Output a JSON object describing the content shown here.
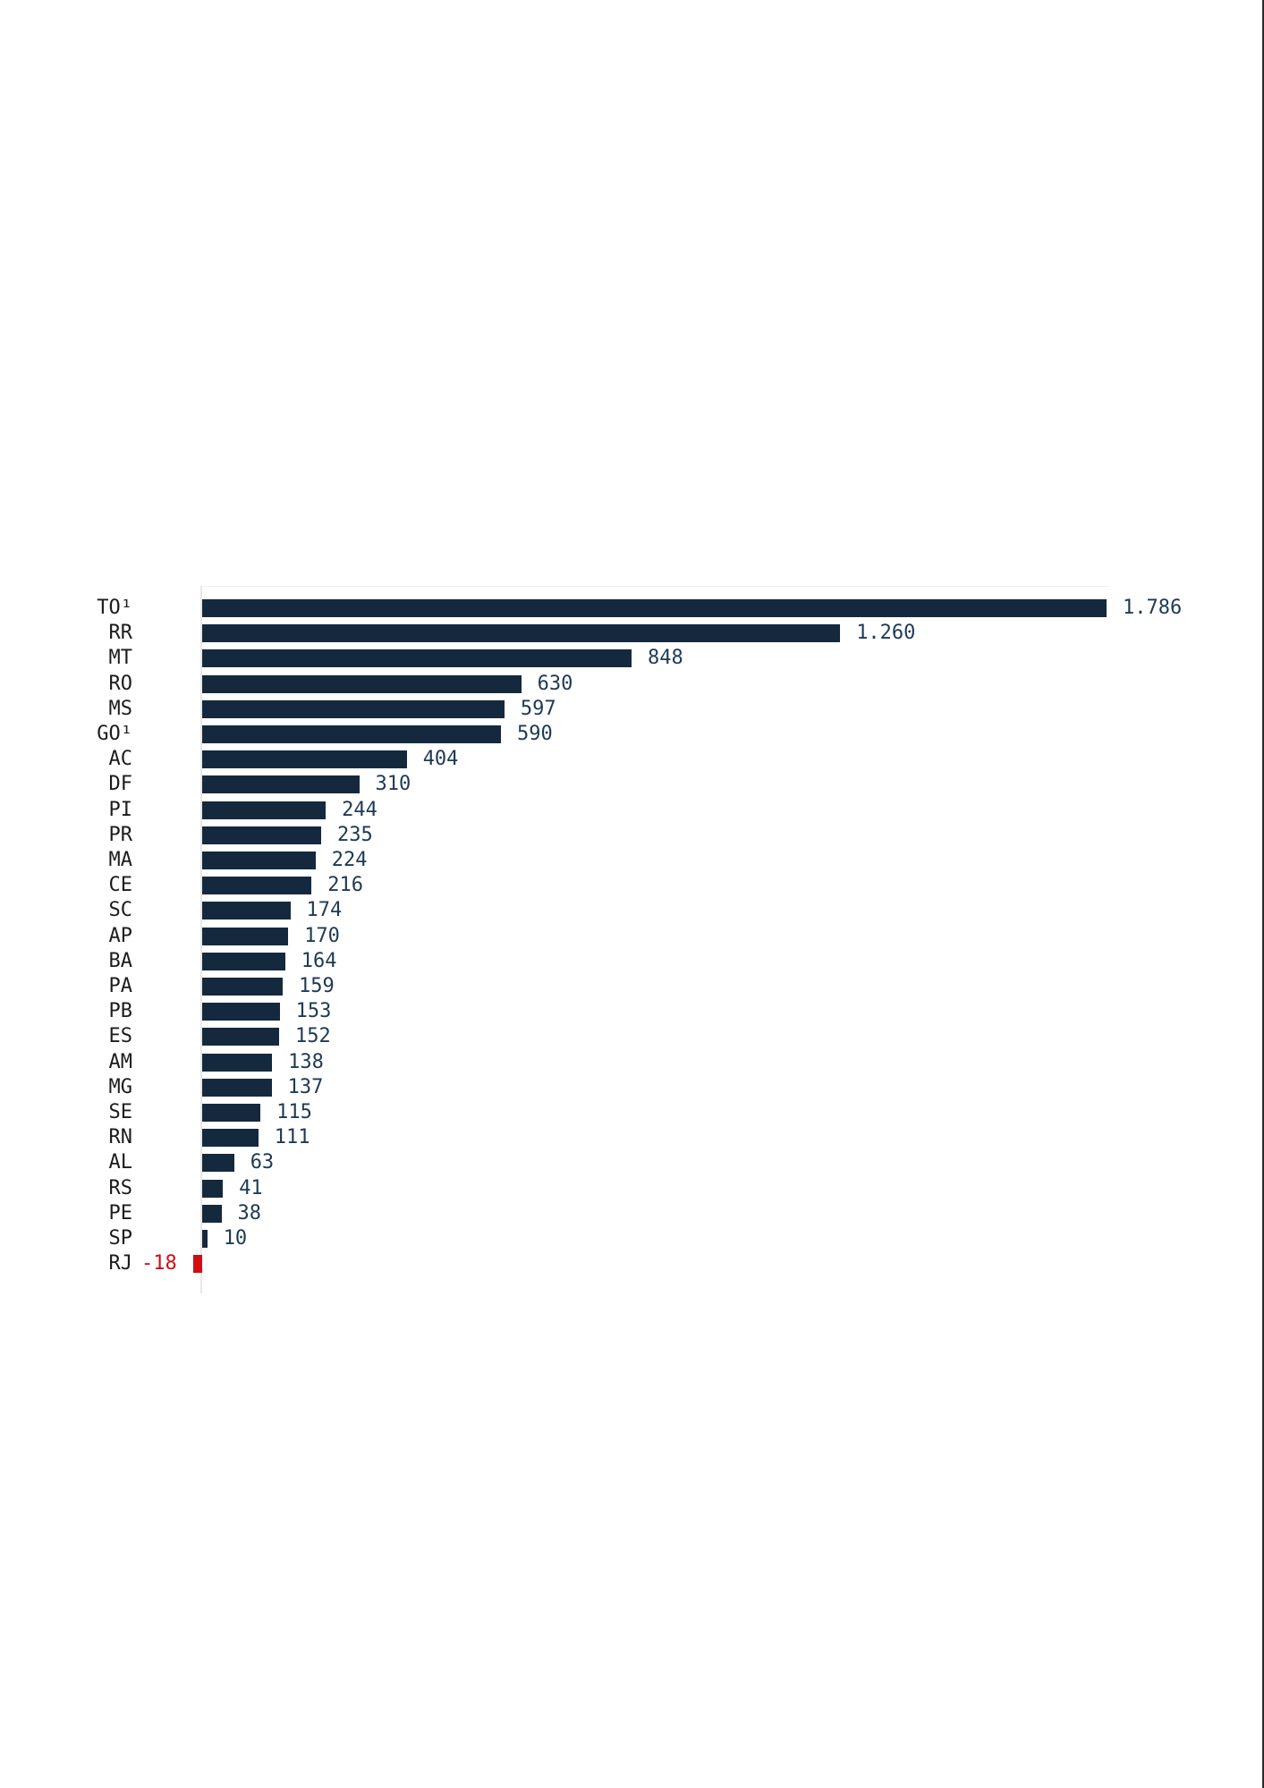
{
  "chart_data": {
    "type": "bar",
    "orientation": "horizontal",
    "title": "",
    "xlabel": "",
    "ylabel": "",
    "legend": false,
    "grid": false,
    "xlim": [
      -18,
      1786
    ],
    "categories": [
      "TO¹",
      "RR",
      "MT",
      "RO",
      "MS",
      "GO¹",
      "AC",
      "DF",
      "PI",
      "PR",
      "MA",
      "CE",
      "SC",
      "AP",
      "BA",
      "PA",
      "PB",
      "ES",
      "AM",
      "MG",
      "SE",
      "RN",
      "AL",
      "RS",
      "PE",
      "SP",
      "RJ"
    ],
    "values": [
      1786,
      1260,
      848,
      630,
      597,
      590,
      404,
      310,
      244,
      235,
      224,
      216,
      174,
      170,
      164,
      159,
      153,
      152,
      138,
      137,
      115,
      111,
      63,
      41,
      38,
      10,
      -18
    ],
    "value_labels": [
      "1.786",
      "1.260",
      "848",
      "630",
      "597",
      "590",
      "404",
      "310",
      "244",
      "235",
      "224",
      "216",
      "174",
      "170",
      "164",
      "159",
      "153",
      "152",
      "138",
      "137",
      "115",
      "111",
      "63",
      "41",
      "38",
      "10",
      "-18"
    ]
  },
  "colors": {
    "positive_bar": "#14293E",
    "negative_bar": "#CE0E13",
    "category_label_text": "#1C1C1C",
    "value_label_text": "#1E3A54",
    "negative_value_label_text": "#CE0E13",
    "axis_line": "#E7E7E7",
    "plot_top_line": "#EFEFEF",
    "right_edge_line": "#2B2B2B",
    "background": "#FFFFFF"
  },
  "layout_hints": {
    "legend_position": "none",
    "value_labels_outside_bar_end": true,
    "negative_value_label_left_of_bar": true
  }
}
